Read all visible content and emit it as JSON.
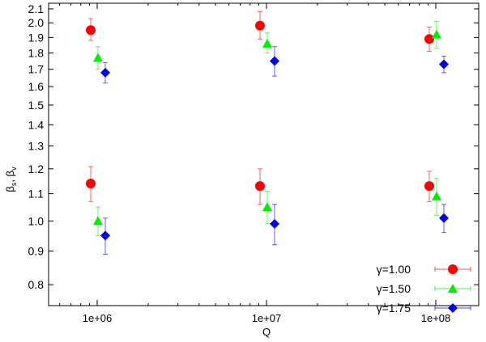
{
  "chart_data": {
    "type": "scatter",
    "title": "",
    "xlabel": "Q",
    "ylabel": "βs, βv",
    "ylabel_parts": {
      "beta1": "β",
      "sub1": "s",
      "sep": ", ",
      "beta2": "β",
      "sub2": "v"
    },
    "xscale": "log",
    "yscale": "log",
    "xlim": [
      500000,
      200000000
    ],
    "ylim": [
      0.74,
      2.15
    ],
    "x_ticks": [
      {
        "value": 1000000,
        "label": "1e+06"
      },
      {
        "value": 10000000,
        "label": "1e+07"
      },
      {
        "value": 100000000,
        "label": "1e+08"
      }
    ],
    "y_ticks": [
      {
        "value": 2.1,
        "label": "2.1"
      },
      {
        "value": 2.0,
        "label": "2.0"
      },
      {
        "value": 1.9,
        "label": "1.9"
      },
      {
        "value": 1.8,
        "label": "1.8"
      },
      {
        "value": 1.7,
        "label": "1.7"
      },
      {
        "value": 1.6,
        "label": "1.6"
      },
      {
        "value": 1.5,
        "label": "1.5"
      },
      {
        "value": 1.4,
        "label": "1.4"
      },
      {
        "value": 1.3,
        "label": "1.3"
      },
      {
        "value": 1.2,
        "label": "1.2"
      },
      {
        "value": 1.1,
        "label": "1.1"
      },
      {
        "value": 1.0,
        "label": "1.0"
      },
      {
        "value": 0.9,
        "label": "0.9"
      },
      {
        "value": 0.8,
        "label": "0.8"
      }
    ],
    "grid": false,
    "legend_position": "lower right",
    "series": [
      {
        "name": "γ=1.00",
        "color": "#ff0000",
        "marker": "circle",
        "points": [
          {
            "x": 1000000,
            "y": 1.95,
            "ylo": 1.88,
            "yhi": 2.03
          },
          {
            "x": 10000000,
            "y": 1.98,
            "ylo": 1.89,
            "yhi": 2.08
          },
          {
            "x": 100000000,
            "y": 1.89,
            "ylo": 1.81,
            "yhi": 1.97
          },
          {
            "x": 1000000,
            "y": 1.14,
            "ylo": 1.07,
            "yhi": 1.21
          },
          {
            "x": 10000000,
            "y": 1.13,
            "ylo": 1.06,
            "yhi": 1.2
          },
          {
            "x": 100000000,
            "y": 1.13,
            "ylo": 1.07,
            "yhi": 1.19
          }
        ]
      },
      {
        "name": "γ=1.50",
        "color": "#00ee00",
        "marker": "triangle",
        "points": [
          {
            "x": 1000000,
            "y": 1.77,
            "ylo": 1.7,
            "yhi": 1.84
          },
          {
            "x": 10000000,
            "y": 1.86,
            "ylo": 1.8,
            "yhi": 1.93
          },
          {
            "x": 100000000,
            "y": 1.92,
            "ylo": 1.83,
            "yhi": 2.01
          },
          {
            "x": 1000000,
            "y": 1.0,
            "ylo": 0.95,
            "yhi": 1.05
          },
          {
            "x": 10000000,
            "y": 1.05,
            "ylo": 0.99,
            "yhi": 1.11
          },
          {
            "x": 100000000,
            "y": 1.09,
            "ylo": 1.02,
            "yhi": 1.16
          }
        ]
      },
      {
        "name": "γ=1.75",
        "color": "#0000ee",
        "marker": "diamond",
        "points": [
          {
            "x": 1000000,
            "y": 1.68,
            "ylo": 1.62,
            "yhi": 1.74
          },
          {
            "x": 10000000,
            "y": 1.75,
            "ylo": 1.66,
            "yhi": 1.84
          },
          {
            "x": 100000000,
            "y": 1.73,
            "ylo": 1.68,
            "yhi": 1.78
          },
          {
            "x": 1000000,
            "y": 0.95,
            "ylo": 0.89,
            "yhi": 1.01
          },
          {
            "x": 10000000,
            "y": 0.99,
            "ylo": 0.92,
            "yhi": 1.06
          },
          {
            "x": 100000000,
            "y": 1.01,
            "ylo": 0.96,
            "yhi": 1.06
          }
        ]
      }
    ]
  }
}
